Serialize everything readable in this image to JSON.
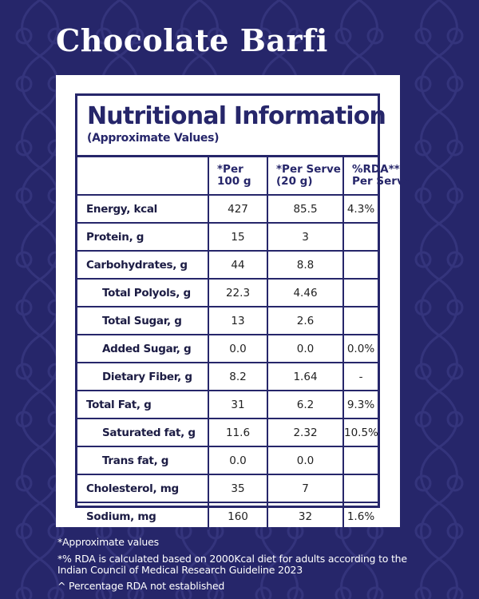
{
  "product": {
    "title": "Chocolate Barfi"
  },
  "panel": {
    "title": "Nutritional Information",
    "subtitle": "(Approximate Values)"
  },
  "table": {
    "headers": {
      "per100_line1": "*Per",
      "per100_line2": "100 g",
      "serve_line1": "*Per Serve",
      "serve_line2": "(20 g)",
      "rda_line1": "%RDA**",
      "rda_line2": "Per Serve"
    },
    "rows": [
      {
        "name": "Energy, kcal",
        "per100": "427",
        "serve": "85.5",
        "rda": "4.3%"
      },
      {
        "name": "Protein, g",
        "per100": "15",
        "serve": "3",
        "rda": ""
      },
      {
        "name": "Carbohydrates, g",
        "per100": "44",
        "serve": "8.8",
        "rda": ""
      },
      {
        "name": "Total Polyols, g",
        "per100": "22.3",
        "serve": "4.46",
        "rda": ""
      },
      {
        "name": "Total Sugar, g",
        "per100": "13",
        "serve": "2.6",
        "rda": ""
      },
      {
        "name": "Added Sugar, g",
        "per100": "0.0",
        "serve": "0.0",
        "rda": "0.0%"
      },
      {
        "name": "Dietary Fiber, g",
        "per100": "8.2",
        "serve": "1.64",
        "rda": "-"
      },
      {
        "name": "Total Fat, g",
        "per100": "31",
        "serve": "6.2",
        "rda": "9.3%"
      },
      {
        "name": "Saturated fat, g",
        "per100": "11.6",
        "serve": "2.32",
        "rda": "10.5%"
      },
      {
        "name": "Trans fat, g",
        "per100": "0.0",
        "serve": "0.0",
        "rda": ""
      },
      {
        "name": "Cholesterol, mg",
        "per100": "35",
        "serve": "7",
        "rda": ""
      },
      {
        "name": "Sodium, mg",
        "per100": "160",
        "serve": "32",
        "rda": "1.6%"
      }
    ]
  },
  "footnotes": {
    "approx": "*Approximate values",
    "rda_line1": "*% RDA is calculated based on 2000Kcal diet for adults according to the",
    "rda_line2": "Indian Council of Medical Research Guideline 2023",
    "not_established": "^ Percentage RDA not established"
  },
  "colors": {
    "background": "#26266a",
    "pattern": "#34347c",
    "card": "#ffffff",
    "border": "#26266a"
  }
}
